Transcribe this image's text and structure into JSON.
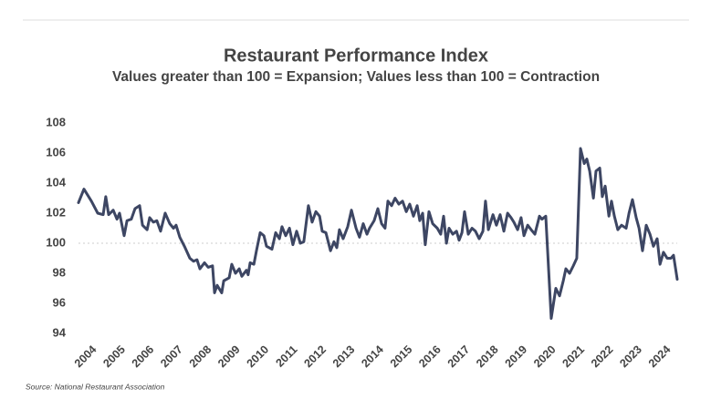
{
  "chart_data": {
    "type": "line",
    "title": "Restaurant Performance Index",
    "subtitle": "Values greater than 100 = Expansion; Values less than 100 = Contraction",
    "source": "Source: National Restaurant Association",
    "color": "#3d4663",
    "reference_line": 100,
    "x": [
      2004.0,
      2004.19,
      2004.45,
      2004.67,
      2004.86,
      2004.95,
      2005.05,
      2005.21,
      2005.34,
      2005.43,
      2005.59,
      2005.69,
      2005.84,
      2005.97,
      2006.13,
      2006.23,
      2006.39,
      2006.48,
      2006.61,
      2006.73,
      2006.86,
      2007.02,
      2007.18,
      2007.31,
      2007.4,
      2007.53,
      2007.69,
      2007.88,
      2008.01,
      2008.13,
      2008.23,
      2008.39,
      2008.52,
      2008.67,
      2008.74,
      2008.83,
      2008.99,
      2009.06,
      2009.25,
      2009.34,
      2009.47,
      2009.6,
      2009.69,
      2009.85,
      2009.91,
      2009.98,
      2010.11,
      2010.2,
      2010.33,
      2010.46,
      2010.55,
      2010.74,
      2010.87,
      2011.0,
      2011.09,
      2011.22,
      2011.35,
      2011.47,
      2011.6,
      2011.73,
      2011.85,
      2012.01,
      2012.14,
      2012.27,
      2012.4,
      2012.49,
      2012.62,
      2012.78,
      2012.9,
      2013.0,
      2013.09,
      2013.22,
      2013.38,
      2013.51,
      2013.67,
      2013.79,
      2013.92,
      2014.05,
      2014.14,
      2014.3,
      2014.43,
      2014.56,
      2014.68,
      2014.78,
      2014.91,
      2015.03,
      2015.16,
      2015.29,
      2015.42,
      2015.54,
      2015.67,
      2015.8,
      2015.89,
      2015.99,
      2016.08,
      2016.21,
      2016.34,
      2016.5,
      2016.62,
      2016.72,
      2016.82,
      2016.91,
      2017.04,
      2017.17,
      2017.26,
      2017.36,
      2017.45,
      2017.58,
      2017.71,
      2017.83,
      2017.96,
      2018.09,
      2018.18,
      2018.28,
      2018.44,
      2018.56,
      2018.69,
      2018.82,
      2018.95,
      2019.07,
      2019.17,
      2019.3,
      2019.42,
      2019.52,
      2019.65,
      2019.77,
      2019.9,
      2020.06,
      2020.15,
      2020.28,
      2020.47,
      2020.63,
      2020.76,
      2020.89,
      2020.98,
      2021.11,
      2021.24,
      2021.36,
      2021.49,
      2021.62,
      2021.71,
      2021.81,
      2021.94,
      2022.03,
      2022.16,
      2022.25,
      2022.35,
      2022.48,
      2022.57,
      2022.67,
      2022.79,
      2022.92,
      2023.08,
      2023.18,
      2023.3,
      2023.43,
      2023.53,
      2023.65,
      2023.78,
      2023.91,
      2024.03,
      2024.16,
      2024.26,
      2024.38,
      2024.51,
      2024.64,
      2024.73,
      2024.86
    ],
    "values": [
      102.7,
      103.6,
      102.8,
      102.0,
      101.9,
      103.1,
      101.9,
      102.2,
      101.6,
      102.0,
      100.5,
      101.5,
      101.6,
      102.3,
      102.5,
      101.2,
      100.9,
      101.7,
      101.4,
      101.5,
      100.8,
      102.0,
      101.3,
      101.0,
      101.2,
      100.4,
      99.8,
      99.0,
      98.8,
      98.9,
      98.3,
      98.7,
      98.4,
      98.5,
      96.7,
      97.2,
      96.7,
      97.5,
      97.7,
      98.6,
      98.0,
      98.3,
      97.8,
      98.2,
      97.9,
      98.7,
      98.6,
      99.5,
      100.7,
      100.5,
      99.8,
      99.6,
      100.7,
      100.3,
      101.1,
      100.5,
      101.0,
      99.9,
      100.8,
      100.0,
      100.1,
      102.5,
      101.4,
      102.1,
      101.8,
      100.8,
      100.7,
      99.5,
      100.1,
      99.7,
      100.9,
      100.3,
      101.1,
      102.2,
      101.0,
      100.4,
      101.3,
      100.6,
      101.0,
      101.5,
      102.3,
      101.3,
      101.0,
      102.8,
      102.5,
      103.0,
      102.6,
      102.8,
      102.1,
      102.6,
      101.8,
      102.5,
      101.5,
      102.0,
      99.9,
      102.1,
      101.3,
      101.0,
      100.6,
      101.8,
      100.0,
      101.0,
      100.6,
      100.8,
      100.2,
      100.7,
      102.1,
      100.6,
      101.0,
      100.8,
      100.3,
      100.8,
      102.8,
      100.9,
      101.9,
      101.2,
      101.9,
      100.8,
      102.0,
      101.7,
      101.4,
      100.9,
      101.7,
      100.5,
      101.2,
      100.9,
      100.6,
      101.8,
      101.6,
      101.8,
      95.0,
      97.0,
      96.5,
      97.5,
      98.3,
      98.0,
      98.5,
      99.0,
      106.3,
      105.3,
      105.6,
      104.8,
      103.0,
      104.8,
      105.0,
      103.1,
      103.8,
      101.8,
      102.8,
      101.8,
      100.9,
      101.2,
      101.0,
      102.0,
      102.9,
      101.7,
      101.0,
      99.5,
      101.2,
      100.6,
      99.8,
      100.3,
      98.6,
      99.4,
      99.0,
      99.0,
      99.2,
      97.6
    ],
    "xlim": [
      2004,
      2024.86
    ],
    "xticks": [
      2004,
      2005,
      2006,
      2007,
      2008,
      2009,
      2010,
      2011,
      2012,
      2013,
      2014,
      2015,
      2016,
      2017,
      2018,
      2019,
      2020,
      2021,
      2022,
      2023,
      2024
    ],
    "ylim": [
      94,
      108
    ],
    "yticks": [
      94,
      96,
      98,
      100,
      102,
      104,
      106,
      108
    ]
  }
}
